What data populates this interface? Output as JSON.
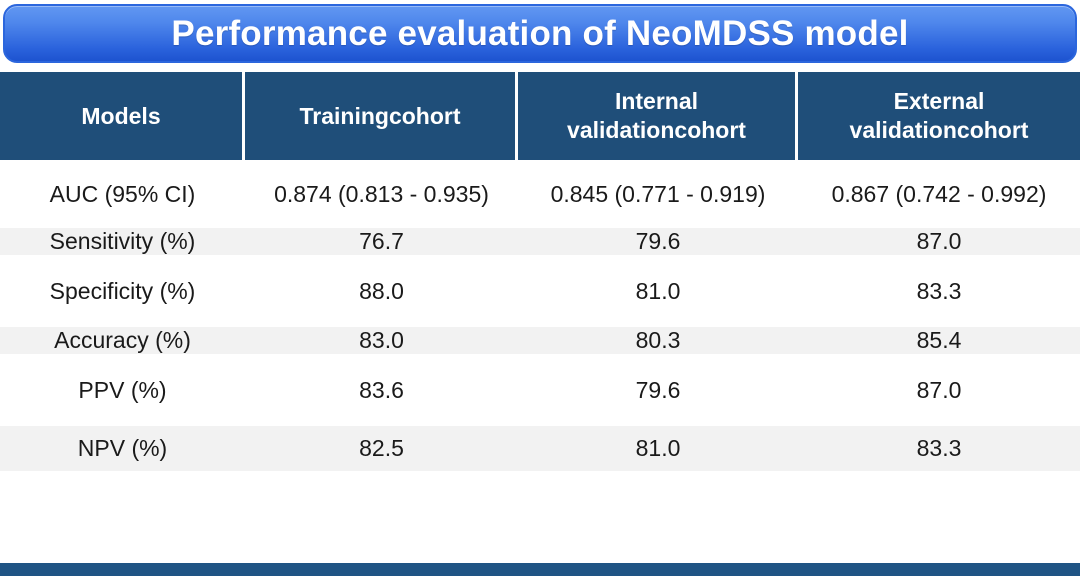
{
  "title": "Performance evaluation of NeoMDSS model",
  "chart_data": {
    "type": "table",
    "title": "Performance evaluation of NeoMDSS model",
    "columns": [
      "Models",
      "Trainingcohort",
      "Internal\nvalidationcohort",
      "External\nvalidationcohort"
    ],
    "rows": [
      {
        "label": "AUC (95% CI)",
        "values": [
          "0.874 (0.813 - 0.935)",
          "0.845 (0.771 - 0.919)",
          "0.867 (0.742 - 0.992)"
        ]
      },
      {
        "label": "Sensitivity (%)",
        "values": [
          "76.7",
          "79.6",
          "87.0"
        ]
      },
      {
        "label": "Specificity (%)",
        "values": [
          "88.0",
          "81.0",
          "83.3"
        ]
      },
      {
        "label": "Accuracy (%)",
        "values": [
          "83.0",
          "80.3",
          "85.4"
        ]
      },
      {
        "label": "PPV (%)",
        "values": [
          "83.6",
          "79.6",
          "87.0"
        ]
      },
      {
        "label": "NPV (%)",
        "values": [
          "82.5",
          "81.0",
          "83.3"
        ]
      }
    ]
  },
  "colors": {
    "header_bg": "#1F4E79",
    "row_alt_bg": "#F2F2F2",
    "banner_top": "#6197F2",
    "banner_bottom": "#1D53D0",
    "banner_border": "#2B66DD",
    "bottom_bar": "#1F5484",
    "header_text": "#FFFFFF",
    "body_text": "#1A1A1A"
  }
}
